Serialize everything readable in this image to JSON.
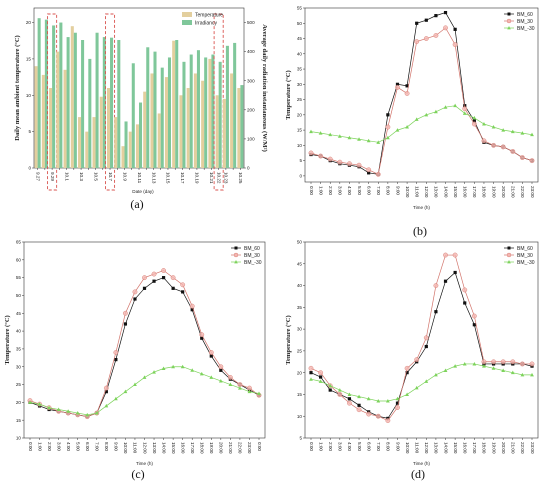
{
  "chart_data": [
    {
      "panel_label": "(a)",
      "type": "bar",
      "xlabel": "Date (day)",
      "ylabel": "Daily mean ambient temperature (°C)",
      "ylabel_right": "Average daily radiation instantaneous (W/M²)",
      "ylim": [
        0,
        22
      ],
      "yticks": [
        0,
        5,
        10,
        15,
        20
      ],
      "ylim_right": [
        0,
        550
      ],
      "yticks_right": [
        0,
        100,
        200,
        300,
        400,
        500
      ],
      "legend": {
        "placement": "top-right",
        "entries": [
          "Temperature",
          "Irradiancy"
        ]
      },
      "categories": [
        "9.27",
        "9.28",
        "9.29",
        "9.30",
        "10.1",
        "10.2",
        "10.3",
        "10.4",
        "10.5",
        "10.6",
        "10.7",
        "10.8",
        "10.9",
        "10.10",
        "10.11",
        "10.12",
        "10.13",
        "10.14",
        "10.15",
        "10.16",
        "10.17",
        "10.18",
        "10.19",
        "10.20",
        "10.21",
        "10.22",
        "10.23",
        "10.24",
        "10.25"
      ],
      "tick_labels": [
        "9.27",
        "9.28",
        "9.29",
        "9.30",
        "10.1",
        "10.2",
        "10.3",
        "10.4",
        "10.5",
        "10.6",
        "10.7",
        "10.8",
        "10.9",
        "10.10",
        "10.11",
        "10.12",
        "10.13",
        "10.14",
        "10.15",
        "10.16",
        "10.17",
        "10.18",
        "10.19",
        "10.20",
        "10.21",
        "10.22",
        "10.23",
        "10.24",
        "10.25"
      ],
      "highlighted": [
        "9.29",
        "10.7",
        "10.22"
      ],
      "series": [
        {
          "name": "Temperature",
          "axis": "left",
          "values": [
            14,
            12.8,
            11,
            16,
            13.5,
            19.5,
            7,
            5,
            7,
            9.8,
            11,
            7,
            3,
            5,
            6,
            10.5,
            13,
            7.5,
            12.5,
            17.5,
            10,
            11,
            13,
            12,
            15,
            10,
            9.5,
            13,
            11
          ]
        },
        {
          "name": "Irradiancy",
          "axis": "right",
          "values": [
            515,
            510,
            490,
            500,
            450,
            465,
            440,
            375,
            465,
            450,
            448,
            440,
            160,
            360,
            225,
            415,
            400,
            345,
            380,
            440,
            365,
            390,
            405,
            380,
            390,
            365,
            420,
            430,
            285
          ]
        }
      ]
    },
    {
      "panel_label": "(b)",
      "type": "line",
      "xlabel": "Time (h)",
      "ylabel": "Temperature (°C)",
      "ylim": [
        -2,
        55
      ],
      "yticks": [
        0,
        5,
        10,
        15,
        20,
        25,
        30,
        35,
        40,
        45,
        50,
        55
      ],
      "xlim": [
        0,
        23
      ],
      "x": [
        0,
        1,
        2,
        3,
        4,
        5,
        6,
        7,
        8,
        9,
        10,
        11,
        12,
        13,
        14,
        15,
        16,
        17,
        18,
        19,
        20,
        21,
        22,
        23
      ],
      "tick_labels": [
        "0:00",
        "1:00",
        "2:00",
        "3:00",
        "4:00",
        "5:00",
        "6:00",
        "7:00",
        "8:00",
        "9:00",
        "10:00",
        "11:00",
        "12:00",
        "13:00",
        "14:00",
        "15:00",
        "16:00",
        "17:00",
        "18:00",
        "19:00",
        "20:00",
        "21:00",
        "22:00",
        "23:00"
      ],
      "legend": {
        "placement": "top-right",
        "entries": [
          "BM_60",
          "BM_30",
          "BM_-30"
        ]
      },
      "series": [
        {
          "name": "BM_60",
          "values": [
            7,
            6.5,
            5,
            4,
            3.5,
            3,
            1,
            0.5,
            20,
            30,
            29.5,
            50,
            51,
            52.5,
            53.5,
            48,
            23,
            18,
            11,
            10,
            9.5,
            8,
            6,
            5
          ]
        },
        {
          "name": "BM_30",
          "values": [
            7.5,
            6.5,
            5.5,
            4.5,
            4,
            3.5,
            2,
            0.5,
            16,
            29,
            27,
            44,
            45,
            46,
            48.5,
            43,
            22,
            17,
            11.5,
            10,
            9.5,
            8,
            6,
            5
          ]
        },
        {
          "name": "BM_-30",
          "values": [
            14.5,
            14,
            13.5,
            13,
            12.5,
            12,
            11.5,
            11,
            12.5,
            15,
            16,
            18.5,
            20,
            21,
            22.5,
            23,
            20.5,
            19,
            17,
            16,
            15,
            14.5,
            14,
            13.5
          ]
        }
      ]
    },
    {
      "panel_label": "(c)",
      "type": "line",
      "xlabel": "Time (h)",
      "ylabel": "Temperature (°C)",
      "ylim": [
        10,
        65
      ],
      "yticks": [
        10,
        15,
        20,
        25,
        30,
        35,
        40,
        45,
        50,
        55,
        60,
        65
      ],
      "xlim": [
        0,
        24
      ],
      "x": [
        0,
        1,
        2,
        3,
        4,
        5,
        6,
        7,
        8,
        9,
        10,
        11,
        12,
        13,
        14,
        15,
        16,
        17,
        18,
        19,
        20,
        21,
        22,
        23,
        24
      ],
      "tick_labels": [
        "0:00",
        "1:00",
        "2:00",
        "3:00",
        "4:00",
        "5:00",
        "6:00",
        "7:00",
        "8:00",
        "9:00",
        "10:00",
        "11:00",
        "12:00",
        "13:00",
        "14:00",
        "15:00",
        "16:00",
        "17:00",
        "18:00",
        "19:00",
        "20:00",
        "21:00",
        "22:00",
        "23:00",
        "0:00"
      ],
      "legend": {
        "placement": "top-right",
        "entries": [
          "BM_60",
          "BM_30",
          "BM_-30"
        ]
      },
      "series": [
        {
          "name": "BM_60",
          "values": [
            20,
            19,
            18,
            17.5,
            17,
            16.5,
            16,
            17,
            23,
            32,
            42,
            49,
            52,
            54,
            55,
            52,
            51,
            46,
            38,
            33,
            29,
            26.5,
            25,
            23.5,
            22
          ]
        },
        {
          "name": "BM_30",
          "values": [
            20.5,
            19.5,
            18.5,
            17.5,
            17,
            16.5,
            16,
            17,
            24,
            34,
            45,
            51,
            55,
            56,
            57,
            55,
            53,
            47,
            39,
            34,
            30,
            27,
            25,
            24,
            22
          ]
        },
        {
          "name": "BM_-30",
          "values": [
            20,
            19.5,
            18.5,
            18,
            17.5,
            17,
            16.5,
            17,
            19,
            21,
            23,
            25,
            27,
            28.5,
            29.5,
            30,
            30,
            29,
            28,
            27,
            26,
            25,
            24,
            23,
            22.5
          ]
        }
      ]
    },
    {
      "panel_label": "(d)",
      "type": "line",
      "xlabel": "Time (h)",
      "ylabel": "Temperature (°C)",
      "ylim": [
        5,
        50
      ],
      "yticks": [
        5,
        10,
        15,
        20,
        25,
        30,
        35,
        40,
        45,
        50
      ],
      "xlim": [
        0,
        23
      ],
      "x": [
        0,
        1,
        2,
        3,
        4,
        5,
        6,
        7,
        8,
        9,
        10,
        11,
        12,
        13,
        14,
        15,
        16,
        17,
        18,
        19,
        20,
        21,
        22,
        23
      ],
      "tick_labels": [
        "0:00",
        "1:00",
        "2:00",
        "3:00",
        "4:00",
        "5:00",
        "6:00",
        "7:00",
        "8:00",
        "9:00",
        "10:00",
        "11:00",
        "12:00",
        "13:00",
        "14:00",
        "15:00",
        "16:00",
        "17:00",
        "18:00",
        "19:00",
        "20:00",
        "21:00",
        "22:00",
        "23:00"
      ],
      "legend": {
        "placement": "top-right",
        "entries": [
          "BM_60",
          "BM_30",
          "BM_-30"
        ]
      },
      "series": [
        {
          "name": "BM_60",
          "values": [
            20,
            19,
            16,
            15,
            14,
            12.5,
            11,
            10,
            9.5,
            13,
            20,
            22.5,
            26,
            34,
            41,
            43,
            36,
            31,
            22,
            22,
            22,
            22,
            22,
            21.5
          ]
        },
        {
          "name": "BM_30",
          "values": [
            21,
            20,
            17,
            15,
            13,
            11.5,
            10.5,
            10,
            9,
            12,
            21,
            23,
            28,
            40,
            47,
            47,
            39,
            33,
            22.5,
            22.5,
            22.5,
            22.5,
            22,
            22
          ]
        },
        {
          "name": "BM_-30",
          "values": [
            18.5,
            18,
            17,
            16,
            15,
            14.5,
            14,
            13.5,
            13.5,
            14,
            15,
            16.5,
            18,
            19.5,
            20.5,
            21.5,
            22,
            22,
            21.5,
            21,
            20.5,
            20,
            19.5,
            19.5
          ]
        }
      ]
    }
  ],
  "colors": {
    "temperature_bar": "#e3cf9e",
    "irradiancy_bar": "#7fc79a",
    "highlight_box": "#d9534f",
    "bm60": "#111111",
    "bm30": "#d2736a",
    "bm30_fill": "#f4b6b1",
    "bmm30": "#7dd35b"
  }
}
